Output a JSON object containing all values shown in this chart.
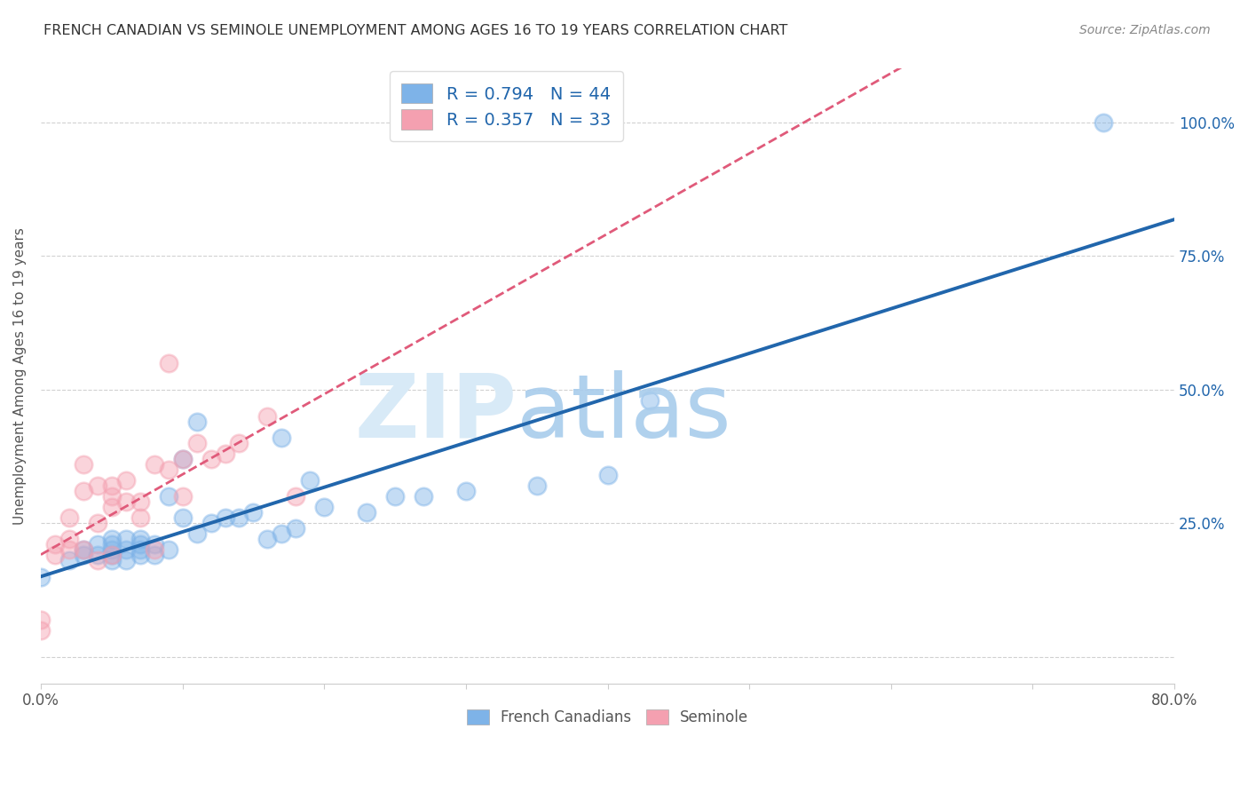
{
  "title": "FRENCH CANADIAN VS SEMINOLE UNEMPLOYMENT AMONG AGES 16 TO 19 YEARS CORRELATION CHART",
  "source": "Source: ZipAtlas.com",
  "ylabel": "Unemployment Among Ages 16 to 19 years",
  "xlim": [
    0.0,
    0.8
  ],
  "ylim": [
    -0.05,
    1.1
  ],
  "x_ticks": [
    0.0,
    0.1,
    0.2,
    0.3,
    0.4,
    0.5,
    0.6,
    0.7,
    0.8
  ],
  "y_ticks": [
    0.0,
    0.25,
    0.5,
    0.75,
    1.0
  ],
  "y_tick_labels_right": [
    "",
    "25.0%",
    "50.0%",
    "75.0%",
    "100.0%"
  ],
  "french_color": "#7eb3e8",
  "seminole_color": "#f4a0b0",
  "french_line_color": "#2166ac",
  "seminole_line_color": "#e05a7a",
  "legend_r_color": "#2166ac",
  "french_R": 0.794,
  "french_N": 44,
  "seminole_R": 0.357,
  "seminole_N": 33,
  "french_x": [
    0.0,
    0.02,
    0.03,
    0.03,
    0.04,
    0.04,
    0.05,
    0.05,
    0.05,
    0.05,
    0.05,
    0.06,
    0.06,
    0.06,
    0.07,
    0.07,
    0.07,
    0.07,
    0.08,
    0.08,
    0.09,
    0.09,
    0.1,
    0.1,
    0.11,
    0.11,
    0.12,
    0.13,
    0.14,
    0.15,
    0.16,
    0.17,
    0.17,
    0.18,
    0.19,
    0.2,
    0.23,
    0.25,
    0.27,
    0.3,
    0.35,
    0.4,
    0.43,
    0.75
  ],
  "french_y": [
    0.15,
    0.18,
    0.19,
    0.2,
    0.19,
    0.21,
    0.18,
    0.19,
    0.2,
    0.21,
    0.22,
    0.18,
    0.2,
    0.22,
    0.19,
    0.2,
    0.21,
    0.22,
    0.19,
    0.21,
    0.2,
    0.3,
    0.26,
    0.37,
    0.23,
    0.44,
    0.25,
    0.26,
    0.26,
    0.27,
    0.22,
    0.23,
    0.41,
    0.24,
    0.33,
    0.28,
    0.27,
    0.3,
    0.3,
    0.31,
    0.32,
    0.34,
    0.48,
    1.0
  ],
  "seminole_x": [
    0.0,
    0.0,
    0.01,
    0.01,
    0.02,
    0.02,
    0.02,
    0.03,
    0.03,
    0.03,
    0.04,
    0.04,
    0.04,
    0.05,
    0.05,
    0.05,
    0.05,
    0.06,
    0.06,
    0.07,
    0.07,
    0.08,
    0.08,
    0.09,
    0.09,
    0.1,
    0.1,
    0.11,
    0.12,
    0.13,
    0.14,
    0.16,
    0.18
  ],
  "seminole_y": [
    0.05,
    0.07,
    0.19,
    0.21,
    0.2,
    0.22,
    0.26,
    0.2,
    0.31,
    0.36,
    0.18,
    0.25,
    0.32,
    0.19,
    0.28,
    0.3,
    0.32,
    0.29,
    0.33,
    0.26,
    0.29,
    0.2,
    0.36,
    0.55,
    0.35,
    0.3,
    0.37,
    0.4,
    0.37,
    0.38,
    0.4,
    0.45,
    0.3
  ]
}
